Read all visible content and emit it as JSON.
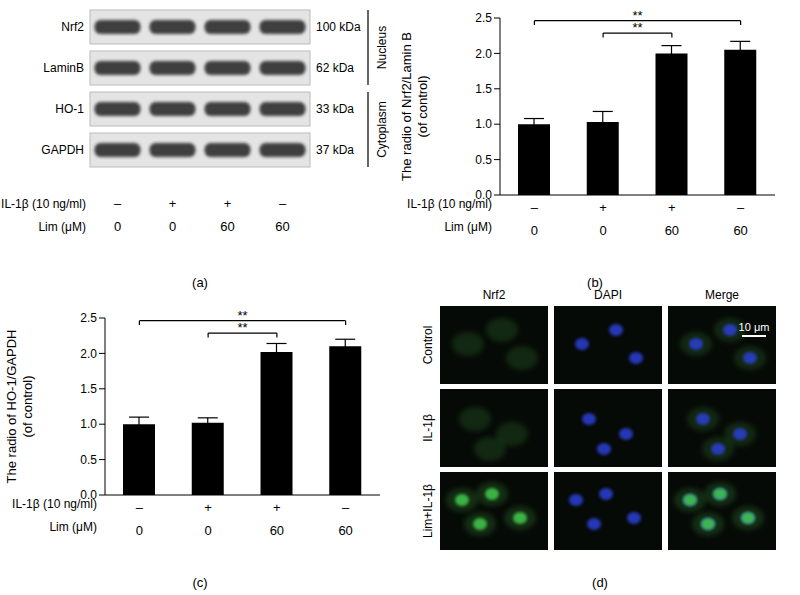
{
  "blot": {
    "panel": "(a)",
    "bands": [
      {
        "label": "Nrf2",
        "size": "100 kDa"
      },
      {
        "label": "LaminB",
        "size": "62 kDa"
      },
      {
        "label": "HO-1",
        "size": "33 kDa"
      },
      {
        "label": "GAPDH",
        "size": "37 kDa"
      }
    ],
    "compartments": [
      {
        "label": "Nucleus",
        "bands": [
          0,
          1
        ]
      },
      {
        "label": "Cytoplasm",
        "bands": [
          2,
          3
        ]
      }
    ],
    "treatments": [
      {
        "label": "IL-1β (10 ng/ml)",
        "values": [
          "–",
          "+",
          "+",
          "–"
        ]
      },
      {
        "label": "Lim (μM)",
        "values": [
          0,
          0,
          60,
          60
        ]
      }
    ]
  },
  "chart_data": [
    {
      "panel": "(b)",
      "type": "bar",
      "ylabel": [
        "The radio of Nrf2/Lamin B",
        "(of control)"
      ],
      "values": [
        1.0,
        1.03,
        2.0,
        2.05
      ],
      "errors": [
        0.08,
        0.15,
        0.11,
        0.12
      ],
      "color": "#000000",
      "ylim": [
        0,
        2.5
      ],
      "yticks": [
        {
          "value": 0,
          "label": "0.0"
        },
        0.5,
        {
          "value": 1,
          "label": "1.0"
        },
        1.5,
        {
          "value": 2,
          "label": "2.0"
        },
        2.5
      ],
      "treatments": [
        {
          "label": "IL-1β (10 ng/ml)",
          "values": [
            "–",
            "+",
            "+",
            "–"
          ]
        },
        {
          "label": "Lim (μM)",
          "values": [
            0,
            0,
            60,
            60
          ]
        }
      ],
      "significance": [
        {
          "from": 0,
          "to": 3,
          "text": "**"
        },
        {
          "from": 1,
          "to": 2,
          "text": "**"
        }
      ]
    },
    {
      "panel": "(c)",
      "type": "bar",
      "ylabel": [
        "The radio of HO-1/GAPDH",
        "(of control)"
      ],
      "values": [
        1.0,
        1.02,
        2.02,
        2.1
      ],
      "errors": [
        0.1,
        0.07,
        0.12,
        0.1
      ],
      "color": "#000000",
      "ylim": [
        0,
        2.5
      ],
      "yticks": [
        {
          "value": 0,
          "label": "0.0"
        },
        0.5,
        {
          "value": 1,
          "label": "1.0"
        },
        1.5,
        {
          "value": 2,
          "label": "2.0"
        },
        2.5
      ],
      "treatments": [
        {
          "label": "IL-1β (10 ng/ml)",
          "values": [
            "–",
            "+",
            "+",
            "–"
          ]
        },
        {
          "label": "Lim (μM)",
          "values": [
            0,
            0,
            60,
            60
          ]
        }
      ],
      "significance": [
        {
          "from": 0,
          "to": 3,
          "text": "**"
        },
        {
          "from": 1,
          "to": 2,
          "text": "**"
        }
      ]
    }
  ],
  "images": {
    "panel": "(d)",
    "columns": [
      "Nrf2",
      "DAPI",
      "Merge"
    ],
    "rows": [
      "Control",
      "IL-1β",
      "Lim+IL-1β"
    ],
    "scale_bar": "10 μm"
  }
}
